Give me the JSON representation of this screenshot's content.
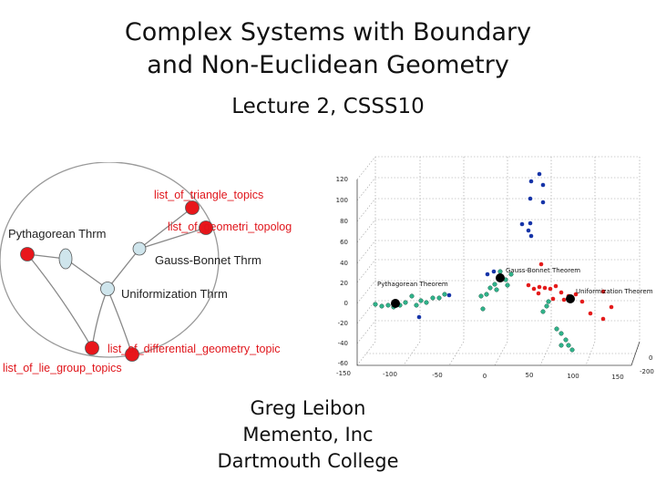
{
  "slide": {
    "title_line1": "Complex Systems with Boundary",
    "title_line2": "and Non-Euclidean Geometry",
    "subtitle": "Lecture 2, CSSS10",
    "author": "Greg Leibon",
    "affiliation1": "Memento, Inc",
    "affiliation2": "Dartmouth College"
  },
  "graph": {
    "labels": {
      "triangle": "list_of_triangle_topics",
      "geometri": "list_of_geometri_topolog",
      "pythagorean": "Pythagorean Thrm",
      "gauss": "Gauss-Bonnet Thrm",
      "uniform": "Uniformization Thrm",
      "differential": "list_of_differential_geometry_topic",
      "lie": "list_of_lie_group_topics"
    },
    "colors": {
      "red_node": "#e8161b",
      "light_node": "#cfe5ec",
      "label_red": "#e0151b",
      "edge": "#888888"
    }
  },
  "plot3d": {
    "annotations": {
      "pythagorean": "Pythagorean Theorem",
      "gauss": "Gauss-Bonnet Theorem",
      "uniform": "Uniformization Theorem"
    },
    "z_ticks": [
      "120",
      "100",
      "80",
      "60",
      "40",
      "20",
      "0",
      "-20",
      "-40",
      "-60"
    ],
    "x_ticks": [
      "-150",
      "-100",
      "-50",
      "0",
      "50",
      "100",
      "150"
    ],
    "y_ticks": [
      "0",
      "-200"
    ],
    "colors": {
      "blue": "#1634a8",
      "red": "#e41b1b",
      "green": "#2fb38a",
      "black": "#000000"
    }
  }
}
